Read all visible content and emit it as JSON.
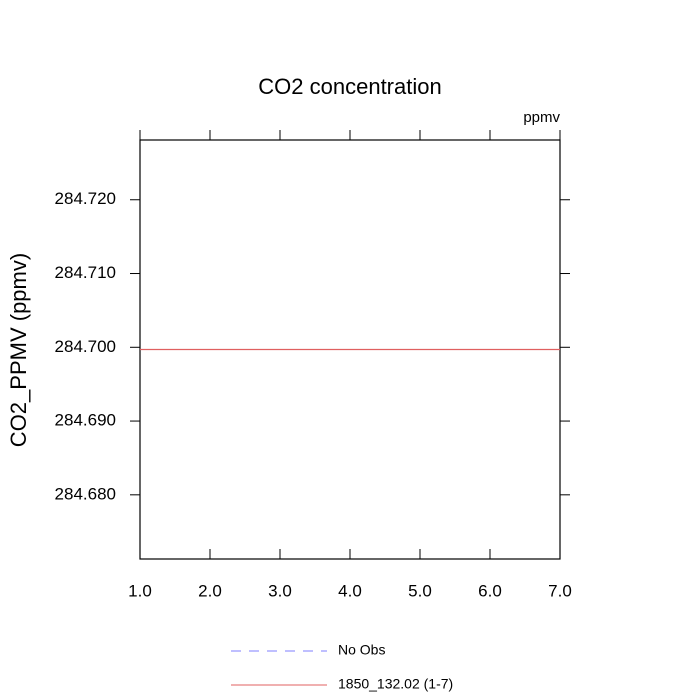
{
  "chart_data": {
    "type": "line",
    "title": "CO2 concentration",
    "units": "ppmv",
    "y_label": "CO2_PPMV  (ppmv)",
    "x": [
      1,
      2,
      3,
      4,
      5,
      6,
      7
    ],
    "series": [
      {
        "name": "No Obs",
        "color": "#7f7fff",
        "style": "dashed",
        "values": [
          null,
          null,
          null,
          null,
          null,
          null,
          null
        ]
      },
      {
        "name": "1850_132.02 (1-7)",
        "color": "#e06060",
        "style": "solid",
        "values": [
          284.6997,
          284.6997,
          284.6997,
          284.6997,
          284.6997,
          284.6997,
          284.6997
        ]
      }
    ],
    "xlim": [
      1,
      7
    ],
    "xticks": [
      {
        "value": 1,
        "label": "1.0"
      },
      {
        "value": 2,
        "label": "2.0"
      },
      {
        "value": 3,
        "label": "3.0"
      },
      {
        "value": 4,
        "label": "4.0"
      },
      {
        "value": 5,
        "label": "5.0"
      },
      {
        "value": 6,
        "label": "6.0"
      },
      {
        "value": 7,
        "label": "7.0"
      }
    ],
    "ylim": [
      284.6713,
      284.7281
    ],
    "yticks": [
      {
        "value": 284.68,
        "label": "284.680"
      },
      {
        "value": 284.69,
        "label": "284.690"
      },
      {
        "value": 284.7,
        "label": "284.700"
      },
      {
        "value": 284.71,
        "label": "284.710"
      },
      {
        "value": 284.72,
        "label": "284.720"
      }
    ]
  }
}
